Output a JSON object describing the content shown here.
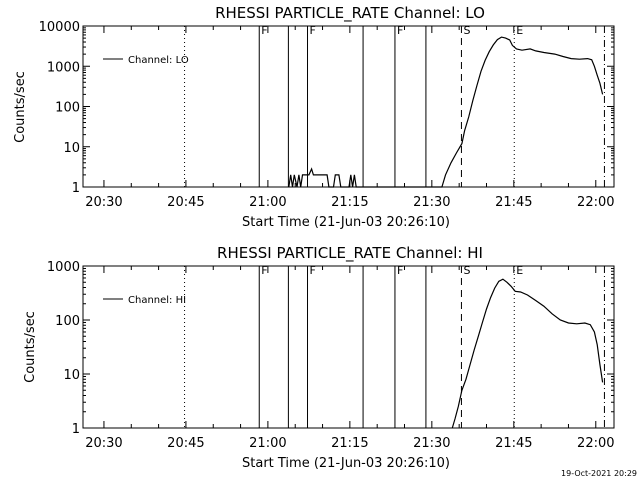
{
  "chart_data": [
    {
      "type": "line",
      "title": "RHESSI PARTICLE_RATE Channel: LO",
      "xlabel": "Start Time (21-Jun-03 20:26:10)",
      "ylabel": "Counts/sec",
      "yscale": "log",
      "ylim": [
        1,
        10000
      ],
      "ytick_labels": [
        "1",
        "10",
        "100",
        "1000",
        "10000"
      ],
      "ytick_values": [
        1,
        10,
        100,
        1000,
        10000
      ],
      "xlim": [
        "20:26:10",
        "22:03:20"
      ],
      "xtick_labels": [
        "20:30",
        "20:45",
        "21:00",
        "21:15",
        "21:30",
        "21:45",
        "22:00"
      ],
      "legend": {
        "label": "Channel: LO",
        "position": "top-left"
      },
      "markers": [
        {
          "label": "F",
          "time": "20:58:25",
          "style": "solid"
        },
        {
          "label": "",
          "time": "21:03:45",
          "style": "solid"
        },
        {
          "label": "F",
          "time": "21:07:15",
          "style": "solid"
        },
        {
          "label": "",
          "time": "21:17:25",
          "style": "solid"
        },
        {
          "label": "F",
          "time": "21:23:15",
          "style": "solid"
        },
        {
          "label": "",
          "time": "21:28:55",
          "style": "solid"
        },
        {
          "label": "S",
          "time": "21:35:25",
          "style": "dashed"
        },
        {
          "label": "E",
          "time": "21:45:05",
          "style": "dotted"
        },
        {
          "label": "",
          "time": "20:44:45",
          "style": "dotted"
        },
        {
          "label": "",
          "time": "22:01:35",
          "style": "dashdot"
        }
      ],
      "series": [
        {
          "name": "Channel: LO",
          "points": [
            [
              "21:03:50",
              1
            ],
            [
              "21:04:10",
              2
            ],
            [
              "21:04:30",
              1
            ],
            [
              "21:04:50",
              2
            ],
            [
              "21:05:20",
              1
            ],
            [
              "21:05:40",
              2
            ],
            [
              "21:06:00",
              1
            ],
            [
              "21:06:20",
              2
            ],
            [
              "21:07:30",
              2
            ],
            [
              "21:08:00",
              2.8
            ],
            [
              "21:08:20",
              2
            ],
            [
              "21:10:50",
              2
            ],
            [
              "21:11:10",
              1
            ],
            [
              "21:12:00",
              1
            ],
            [
              "21:12:20",
              2
            ],
            [
              "21:13:00",
              2
            ],
            [
              "21:13:20",
              1
            ],
            [
              "21:14:50",
              1
            ],
            [
              "21:15:10",
              2
            ],
            [
              "21:15:30",
              1
            ],
            [
              "21:15:50",
              2
            ],
            [
              "21:16:10",
              1
            ],
            [
              "21:31:50",
              1
            ],
            [
              "21:32:30",
              2
            ],
            [
              "21:33:30",
              4
            ],
            [
              "21:34:30",
              7
            ],
            [
              "21:35:30",
              12
            ],
            [
              "21:36:00",
              25
            ],
            [
              "21:36:45",
              55
            ],
            [
              "21:37:30",
              140
            ],
            [
              "21:38:15",
              330
            ],
            [
              "21:39:00",
              750
            ],
            [
              "21:39:45",
              1400
            ],
            [
              "21:40:30",
              2300
            ],
            [
              "21:41:15",
              3400
            ],
            [
              "21:42:00",
              4600
            ],
            [
              "21:42:45",
              5300
            ],
            [
              "21:43:30",
              5000
            ],
            [
              "21:44:15",
              4500
            ],
            [
              "21:44:45",
              3300
            ],
            [
              "21:45:30",
              2700
            ],
            [
              "21:46:30",
              2500
            ],
            [
              "21:48:00",
              2700
            ],
            [
              "21:49:00",
              2400
            ],
            [
              "21:50:30",
              2200
            ],
            [
              "21:52:30",
              2000
            ],
            [
              "21:54:00",
              1750
            ],
            [
              "21:55:30",
              1550
            ],
            [
              "21:57:00",
              1500
            ],
            [
              "21:58:30",
              1550
            ],
            [
              "21:59:15",
              1450
            ],
            [
              "21:59:45",
              1000
            ],
            [
              "22:00:15",
              600
            ],
            [
              "22:00:45",
              380
            ],
            [
              "22:01:15",
              200
            ]
          ]
        }
      ]
    },
    {
      "type": "line",
      "title": "RHESSI PARTICLE_RATE Channel: HI",
      "xlabel": "Start Time (21-Jun-03 20:26:10)",
      "ylabel": "Counts/sec",
      "yscale": "log",
      "ylim": [
        1,
        1000
      ],
      "ytick_labels": [
        "1",
        "10",
        "100",
        "1000"
      ],
      "ytick_values": [
        1,
        10,
        100,
        1000
      ],
      "xlim": [
        "20:26:10",
        "22:03:20"
      ],
      "xtick_labels": [
        "20:30",
        "20:45",
        "21:00",
        "21:15",
        "21:30",
        "21:45",
        "22:00"
      ],
      "legend": {
        "label": "Channel: HI",
        "position": "top-left"
      },
      "markers": [
        {
          "label": "F",
          "time": "20:58:25",
          "style": "solid"
        },
        {
          "label": "",
          "time": "21:03:45",
          "style": "solid"
        },
        {
          "label": "F",
          "time": "21:07:15",
          "style": "solid"
        },
        {
          "label": "",
          "time": "21:17:25",
          "style": "solid"
        },
        {
          "label": "F",
          "time": "21:23:15",
          "style": "solid"
        },
        {
          "label": "",
          "time": "21:28:55",
          "style": "solid"
        },
        {
          "label": "S",
          "time": "21:35:25",
          "style": "dashed"
        },
        {
          "label": "E",
          "time": "21:45:05",
          "style": "dotted"
        },
        {
          "label": "",
          "time": "20:44:45",
          "style": "dotted"
        },
        {
          "label": "",
          "time": "22:01:35",
          "style": "dashdot"
        }
      ],
      "series": [
        {
          "name": "Channel: HI",
          "points": [
            [
              "21:33:45",
              1
            ],
            [
              "21:34:15",
              1.5
            ],
            [
              "21:34:50",
              2.5
            ],
            [
              "21:35:30",
              5
            ],
            [
              "21:36:15",
              8
            ],
            [
              "21:37:00",
              15
            ],
            [
              "21:37:45",
              28
            ],
            [
              "21:38:30",
              50
            ],
            [
              "21:39:15",
              90
            ],
            [
              "21:40:00",
              160
            ],
            [
              "21:40:45",
              260
            ],
            [
              "21:41:30",
              390
            ],
            [
              "21:42:15",
              520
            ],
            [
              "21:43:00",
              570
            ],
            [
              "21:43:45",
              500
            ],
            [
              "21:44:30",
              420
            ],
            [
              "21:45:15",
              340
            ],
            [
              "21:46:15",
              330
            ],
            [
              "21:47:30",
              290
            ],
            [
              "21:49:00",
              230
            ],
            [
              "21:50:30",
              180
            ],
            [
              "21:52:00",
              130
            ],
            [
              "21:53:30",
              100
            ],
            [
              "21:55:00",
              88
            ],
            [
              "21:56:30",
              85
            ],
            [
              "21:58:00",
              88
            ],
            [
              "21:59:00",
              82
            ],
            [
              "21:59:45",
              60
            ],
            [
              "22:00:15",
              35
            ],
            [
              "22:00:45",
              15
            ],
            [
              "22:01:15",
              7
            ]
          ]
        }
      ]
    }
  ],
  "footer": {
    "timestamp": "19-Oct-2021 20:29"
  }
}
